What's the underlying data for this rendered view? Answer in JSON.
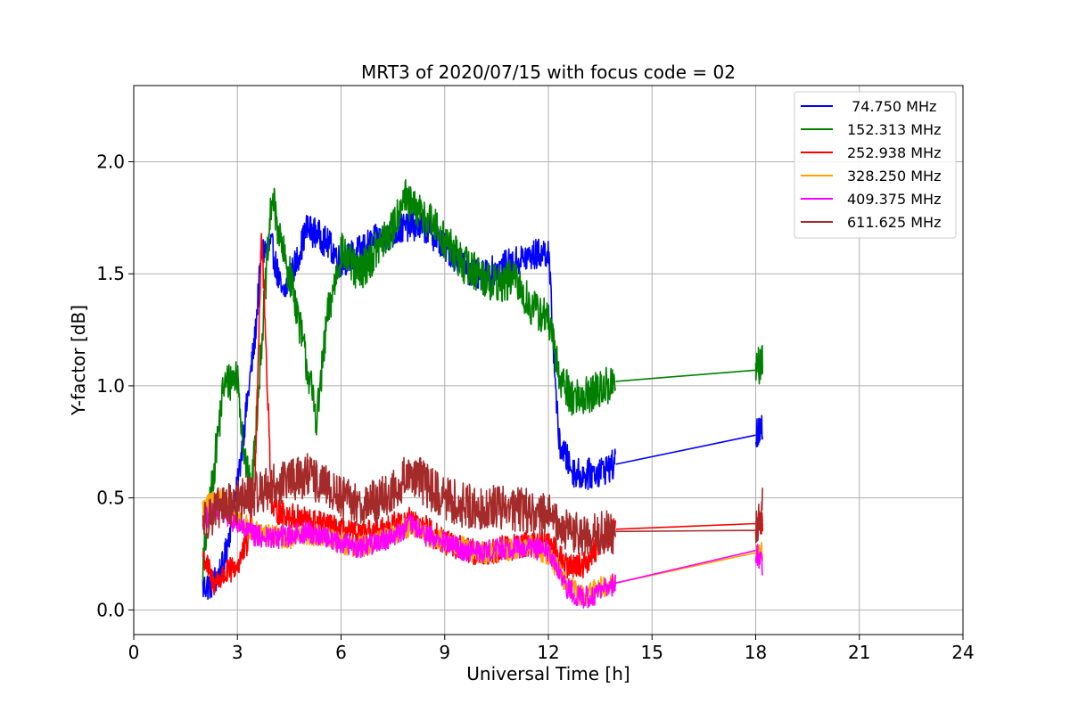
{
  "chart_data": {
    "type": "line",
    "title": "MRT3 of 2020/07/15 with focus code = 02",
    "xlabel": "Universal Time [h]",
    "ylabel": "Y-factor [dB]",
    "xlim": [
      0,
      24
    ],
    "ylim": [
      -0.11,
      2.34
    ],
    "xticks": [
      0,
      3,
      6,
      9,
      12,
      15,
      18,
      21,
      24
    ],
    "yticks": [
      0.0,
      0.5,
      1.0,
      1.5,
      2.0
    ],
    "xtick_labels": [
      "0",
      "3",
      "6",
      "9",
      "12",
      "15",
      "18",
      "21",
      "24"
    ],
    "ytick_labels": [
      "0.0",
      "0.5",
      "1.0",
      "1.5",
      "2.0"
    ],
    "grid": true,
    "legend_position": "top-right",
    "series": [
      {
        "name": " 74.750 MHz",
        "color": "#0000ff",
        "x": [
          2.0,
          2.3,
          2.6,
          3.0,
          3.3,
          3.5,
          3.7,
          4.0,
          4.3,
          4.7,
          5.0,
          5.3,
          5.7,
          6.0,
          6.5,
          7.0,
          7.5,
          8.0,
          8.5,
          9.0,
          9.5,
          10.0,
          10.5,
          11.0,
          11.5,
          12.0,
          12.3,
          12.7,
          13.0,
          13.5,
          13.95,
          18.0,
          18.2
        ],
        "y": [
          0.1,
          0.12,
          0.2,
          0.55,
          0.95,
          1.2,
          1.6,
          1.62,
          1.4,
          1.55,
          1.7,
          1.68,
          1.62,
          1.55,
          1.6,
          1.65,
          1.68,
          1.72,
          1.7,
          1.62,
          1.55,
          1.48,
          1.52,
          1.55,
          1.58,
          1.6,
          0.75,
          0.62,
          0.6,
          0.62,
          0.65,
          0.78,
          0.8
        ],
        "noise": 0.07
      },
      {
        "name": "152.313 MHz",
        "color": "#008000",
        "x": [
          2.0,
          2.3,
          2.6,
          3.0,
          3.2,
          3.4,
          3.7,
          4.0,
          4.3,
          4.6,
          5.0,
          5.3,
          5.6,
          6.0,
          6.5,
          7.0,
          7.5,
          7.8,
          8.0,
          8.5,
          9.0,
          9.5,
          10.0,
          10.5,
          11.0,
          11.5,
          12.0,
          12.3,
          12.7,
          13.0,
          13.5,
          13.95,
          18.0,
          18.2
        ],
        "y": [
          0.2,
          0.6,
          1.0,
          1.05,
          0.7,
          0.5,
          1.2,
          1.85,
          1.6,
          1.45,
          1.1,
          0.85,
          1.3,
          1.6,
          1.5,
          1.6,
          1.7,
          1.85,
          1.8,
          1.75,
          1.65,
          1.55,
          1.5,
          1.45,
          1.48,
          1.35,
          1.3,
          1.05,
          0.95,
          0.95,
          0.98,
          1.02,
          1.07,
          1.1
        ],
        "noise": 0.09
      },
      {
        "name": "252.938 MHz",
        "color": "#ff0000",
        "x": [
          2.0,
          2.3,
          2.6,
          3.0,
          3.3,
          3.5,
          3.7,
          4.0,
          4.5,
          5.0,
          5.5,
          6.0,
          6.5,
          7.0,
          7.5,
          8.0,
          8.5,
          9.0,
          9.5,
          10.0,
          10.5,
          11.0,
          11.5,
          12.0,
          12.5,
          13.0,
          13.5,
          13.95,
          18.0,
          18.2
        ],
        "y": [
          0.25,
          0.12,
          0.15,
          0.2,
          0.3,
          0.55,
          1.7,
          0.45,
          0.42,
          0.4,
          0.38,
          0.35,
          0.33,
          0.35,
          0.38,
          0.4,
          0.36,
          0.3,
          0.27,
          0.25,
          0.27,
          0.28,
          0.3,
          0.3,
          0.2,
          0.2,
          0.3,
          0.36,
          0.385,
          0.39
        ],
        "noise": 0.06
      },
      {
        "name": "328.250 MHz",
        "color": "#ffa500",
        "x": [
          2.0,
          2.5,
          3.0,
          3.5,
          4.0,
          4.5,
          5.0,
          5.5,
          6.0,
          6.5,
          7.0,
          7.5,
          8.0,
          8.5,
          9.0,
          9.5,
          10.0,
          10.5,
          11.0,
          11.5,
          12.0,
          12.5,
          13.0,
          13.5,
          13.95,
          18.0,
          18.2
        ],
        "y": [
          0.45,
          0.5,
          0.4,
          0.35,
          0.33,
          0.32,
          0.34,
          0.33,
          0.3,
          0.28,
          0.3,
          0.33,
          0.38,
          0.33,
          0.3,
          0.28,
          0.25,
          0.26,
          0.27,
          0.28,
          0.25,
          0.12,
          0.06,
          0.1,
          0.12,
          0.255,
          0.26
        ],
        "noise": 0.05
      },
      {
        "name": "409.375 MHz",
        "color": "#ff00ff",
        "x": [
          2.0,
          2.5,
          3.0,
          3.5,
          4.0,
          4.5,
          5.0,
          5.5,
          6.0,
          6.5,
          7.0,
          7.5,
          8.0,
          8.5,
          9.0,
          9.5,
          10.0,
          10.5,
          11.0,
          11.5,
          12.0,
          12.5,
          13.0,
          13.5,
          13.95,
          18.0,
          18.2
        ],
        "y": [
          0.4,
          0.45,
          0.38,
          0.33,
          0.32,
          0.33,
          0.35,
          0.33,
          0.3,
          0.28,
          0.3,
          0.33,
          0.38,
          0.33,
          0.3,
          0.27,
          0.26,
          0.27,
          0.28,
          0.28,
          0.26,
          0.1,
          0.05,
          0.08,
          0.12,
          0.265,
          0.2
        ],
        "noise": 0.05
      },
      {
        "name": "611.625 MHz",
        "color": "#a52a2a",
        "x": [
          2.0,
          2.5,
          3.0,
          3.5,
          4.0,
          4.5,
          5.0,
          5.5,
          6.0,
          6.5,
          7.0,
          7.5,
          8.0,
          8.5,
          9.0,
          9.5,
          10.0,
          10.5,
          11.0,
          11.5,
          12.0,
          12.5,
          13.0,
          13.5,
          13.95,
          18.0,
          18.2
        ],
        "y": [
          0.4,
          0.45,
          0.48,
          0.52,
          0.55,
          0.58,
          0.6,
          0.55,
          0.5,
          0.47,
          0.48,
          0.52,
          0.62,
          0.55,
          0.5,
          0.47,
          0.45,
          0.46,
          0.45,
          0.44,
          0.42,
          0.35,
          0.33,
          0.34,
          0.35,
          0.355,
          0.45
        ],
        "noise": 0.1
      }
    ]
  }
}
